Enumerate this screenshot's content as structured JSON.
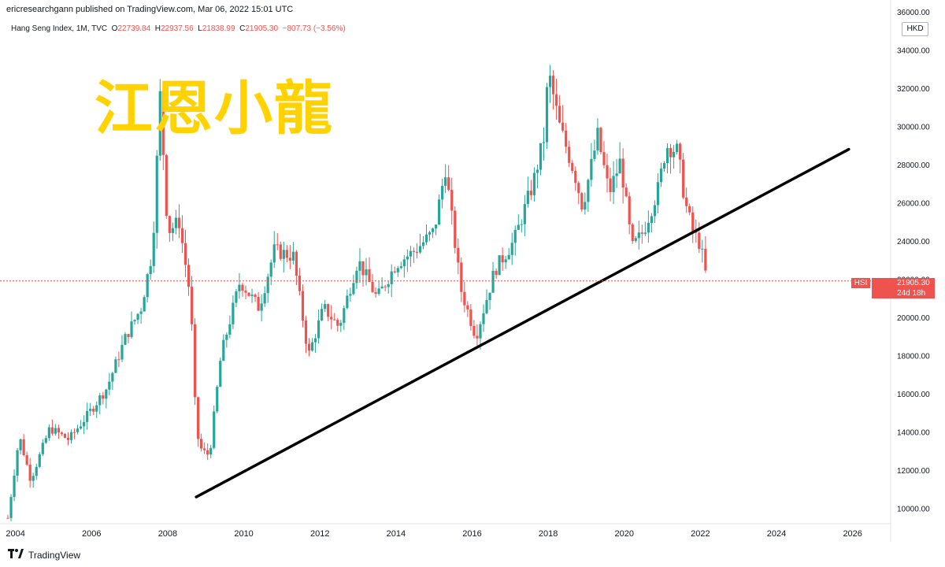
{
  "header": {
    "publish_line": "ericresearchgann published on TradingView.com, Mar 06, 2022 15:01 UTC",
    "symbol_line": "Hang Seng Index, 1M, TVC",
    "o_label": "O",
    "o_value": "22739.84",
    "h_label": "H",
    "h_value": "22937.56",
    "l_label": "L",
    "l_value": "21838.99",
    "c_label": "C",
    "c_value": "21905.30",
    "change": "−807.73 (−3.56%)"
  },
  "overlay_title": "江恩小龍",
  "price_axis": {
    "currency": "HKD"
  },
  "last_price": {
    "symbol": "HSI",
    "value": "21905.30",
    "countdown": "24d 18h"
  },
  "brand": {
    "name": "TradingView"
  },
  "colors": {
    "up": "#26a69a",
    "down": "#ef5350",
    "trendline": "#000000",
    "overlay": "#ffd200"
  },
  "chart_data": {
    "type": "candlestick",
    "title": "Hang Seng Index, 1M, TVC",
    "x_ticks": [
      "2004",
      "2006",
      "2008",
      "2010",
      "2012",
      "2014",
      "2016",
      "2018",
      "2020",
      "2022",
      "2024",
      "2026"
    ],
    "x_range": [
      2003.8,
      2027.0
    ],
    "y_ticks": [
      "10000.00",
      "12000.00",
      "14000.00",
      "16000.00",
      "18000.00",
      "20000.00",
      "22000.00",
      "24000.00",
      "26000.00",
      "28000.00",
      "30000.00",
      "32000.00",
      "34000.00",
      "36000.00"
    ],
    "y_range": [
      9200,
      36200
    ],
    "grid": false,
    "current_price": 21905.3,
    "trendline": {
      "start": [
        2008.75,
        10600
      ],
      "end": [
        2025.9,
        28800
      ]
    },
    "series": [
      {
        "date": 2003.8,
        "close": 9500
      },
      {
        "date": 2004.1,
        "close": 13800
      },
      {
        "date": 2004.4,
        "close": 11500
      },
      {
        "date": 2004.9,
        "close": 14200
      },
      {
        "date": 2005.4,
        "close": 13600
      },
      {
        "date": 2005.9,
        "close": 14900
      },
      {
        "date": 2006.4,
        "close": 16300
      },
      {
        "date": 2006.9,
        "close": 19000
      },
      {
        "date": 2007.3,
        "close": 20500
      },
      {
        "date": 2007.6,
        "close": 23500
      },
      {
        "date": 2007.8,
        "close": 31600
      },
      {
        "date": 2008.0,
        "close": 24500
      },
      {
        "date": 2008.3,
        "close": 25000
      },
      {
        "date": 2008.6,
        "close": 21000
      },
      {
        "date": 2008.75,
        "close": 14000
      },
      {
        "date": 2008.9,
        "close": 13000
      },
      {
        "date": 2009.1,
        "close": 12800
      },
      {
        "date": 2009.4,
        "close": 18000
      },
      {
        "date": 2009.9,
        "close": 21900
      },
      {
        "date": 2010.4,
        "close": 20500
      },
      {
        "date": 2010.8,
        "close": 23500
      },
      {
        "date": 2011.3,
        "close": 23200
      },
      {
        "date": 2011.7,
        "close": 18000
      },
      {
        "date": 2012.1,
        "close": 20500
      },
      {
        "date": 2012.5,
        "close": 19500
      },
      {
        "date": 2013.0,
        "close": 23000
      },
      {
        "date": 2013.5,
        "close": 21000
      },
      {
        "date": 2014.0,
        "close": 22800
      },
      {
        "date": 2014.5,
        "close": 23500
      },
      {
        "date": 2015.0,
        "close": 24500
      },
      {
        "date": 2015.3,
        "close": 27800
      },
      {
        "date": 2015.7,
        "close": 21500
      },
      {
        "date": 2016.1,
        "close": 19000
      },
      {
        "date": 2016.6,
        "close": 22500
      },
      {
        "date": 2017.1,
        "close": 24000
      },
      {
        "date": 2017.6,
        "close": 27000
      },
      {
        "date": 2017.9,
        "close": 29500
      },
      {
        "date": 2018.0,
        "close": 32900
      },
      {
        "date": 2018.3,
        "close": 30000
      },
      {
        "date": 2018.7,
        "close": 27500
      },
      {
        "date": 2018.9,
        "close": 25800
      },
      {
        "date": 2019.3,
        "close": 29500
      },
      {
        "date": 2019.6,
        "close": 26500
      },
      {
        "date": 2019.9,
        "close": 28200
      },
      {
        "date": 2020.2,
        "close": 23600
      },
      {
        "date": 2020.5,
        "close": 24500
      },
      {
        "date": 2020.9,
        "close": 26800
      },
      {
        "date": 2021.1,
        "close": 29000
      },
      {
        "date": 2021.4,
        "close": 28700
      },
      {
        "date": 2021.6,
        "close": 26000
      },
      {
        "date": 2021.8,
        "close": 24500
      },
      {
        "date": 2022.0,
        "close": 23800
      },
      {
        "date": 2022.17,
        "close": 21905
      }
    ]
  }
}
